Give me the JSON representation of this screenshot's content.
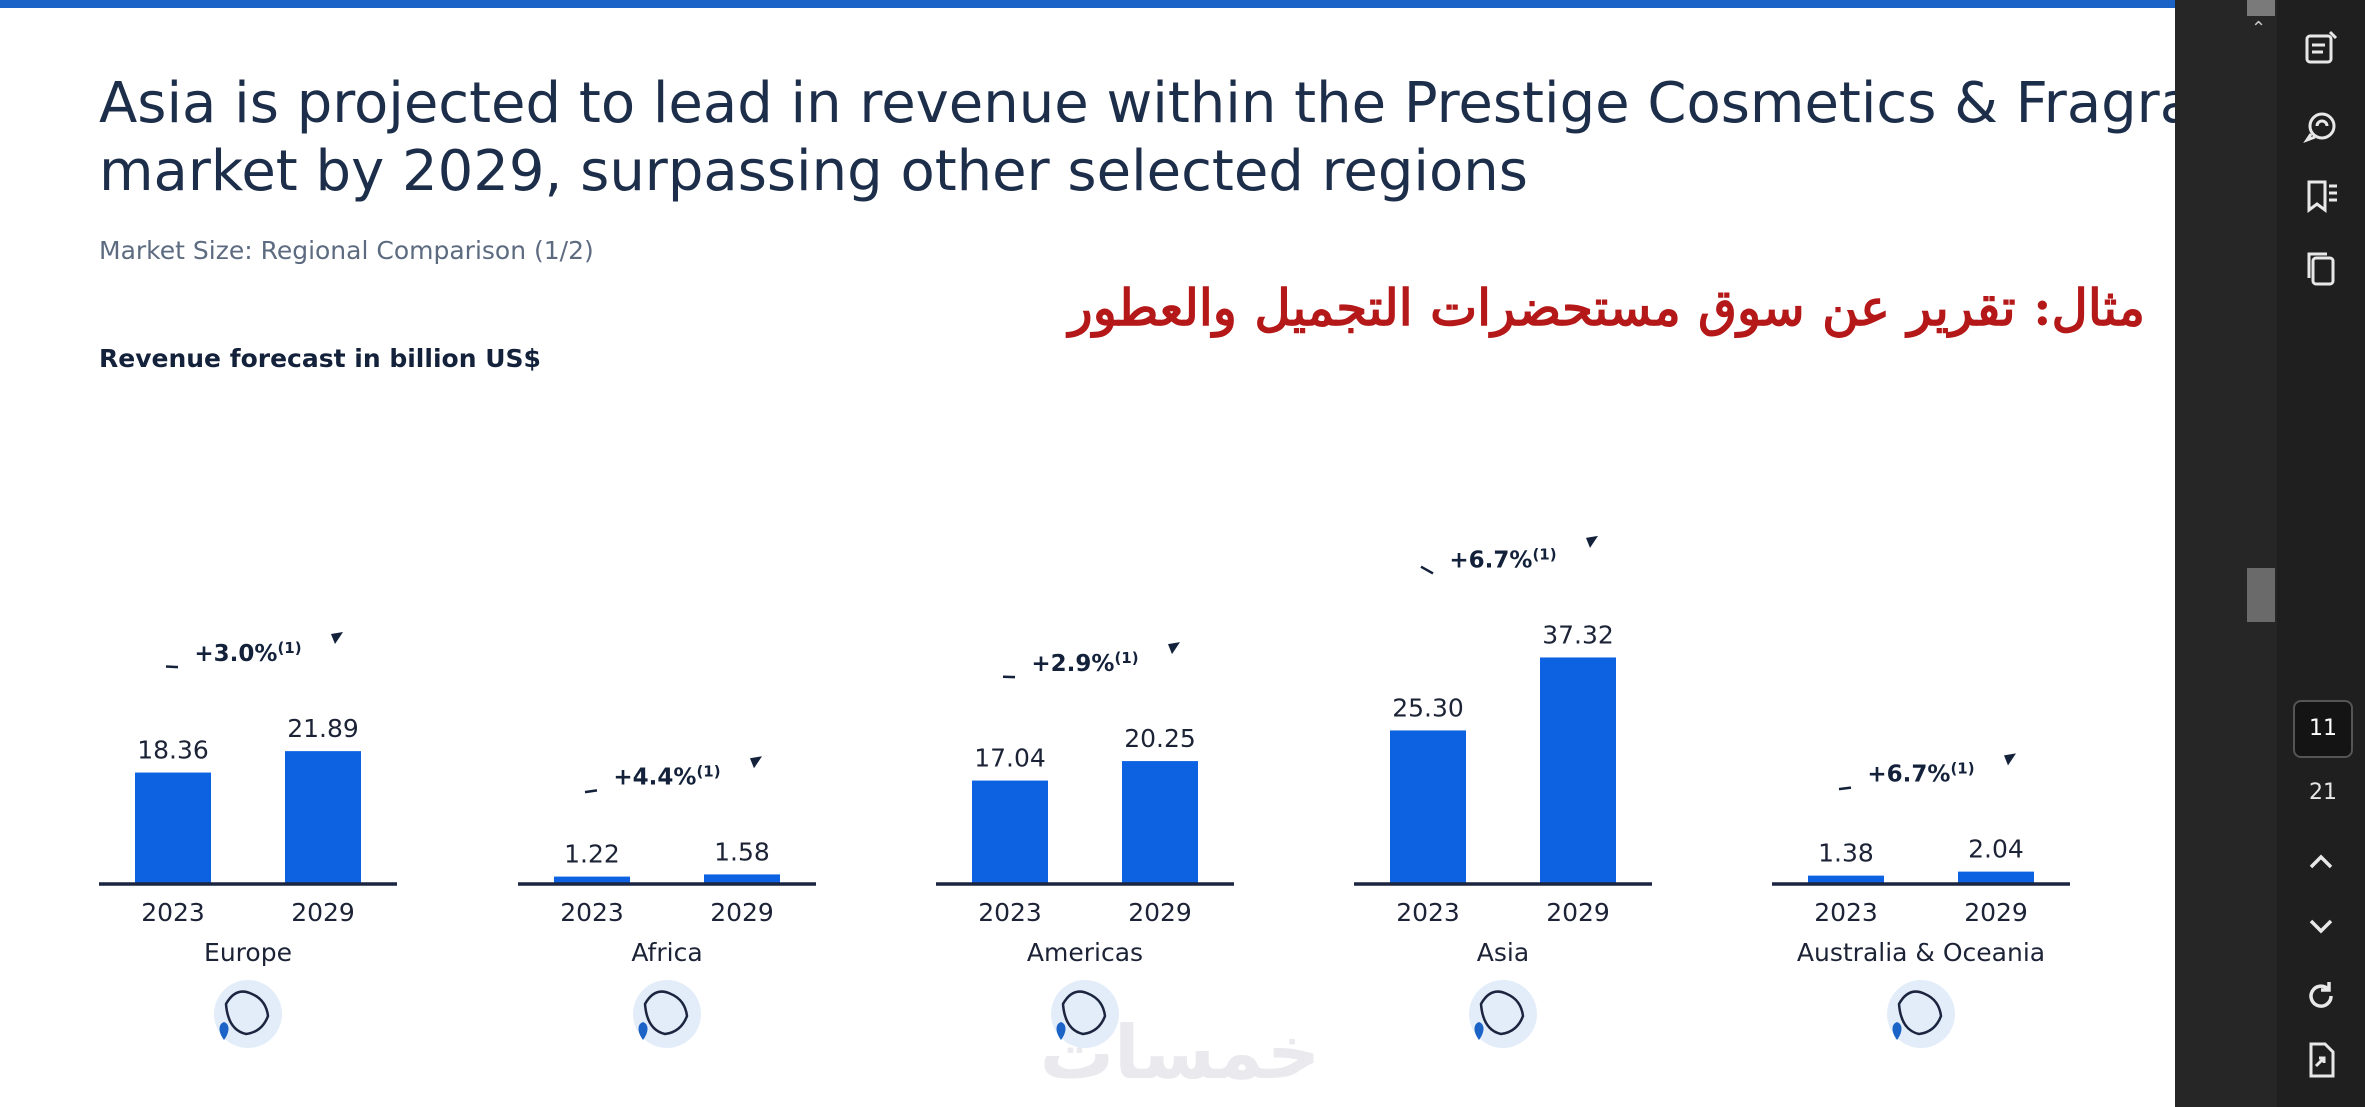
{
  "slide": {
    "title_line1": "Asia is projected to lead in revenue within the Prestige Cosmetics & Fragrances",
    "title_line2": "market by 2029, surpassing other selected regions",
    "subtitle": "Market Size: Regional Comparison (1/2)",
    "arabic_caption": "مثال: تقرير عن سوق مستحضرات التجميل والعطور",
    "y_label": "Revenue forecast in billion US$",
    "watermark": "خمسات"
  },
  "chart_data": {
    "type": "bar",
    "title": "Revenue forecast in billion US$",
    "categories": [
      "2023",
      "2029"
    ],
    "groups": [
      {
        "region": "Europe",
        "values": [
          18.36,
          21.89
        ],
        "labels": [
          "18.36",
          "21.89"
        ],
        "cagr": "+3.0%",
        "note": "(1)"
      },
      {
        "region": "Africa",
        "values": [
          1.22,
          1.58
        ],
        "labels": [
          "1.22",
          "1.58"
        ],
        "cagr": "+4.4%",
        "note": "(1)"
      },
      {
        "region": "Americas",
        "values": [
          17.04,
          20.25
        ],
        "labels": [
          "17.04",
          "20.25"
        ],
        "cagr": "+2.9%",
        "note": "(1)"
      },
      {
        "region": "Asia",
        "values": [
          25.3,
          37.32
        ],
        "labels": [
          "25.30",
          "37.32"
        ],
        "cagr": "+6.7%",
        "note": "(1)"
      },
      {
        "region": "Australia & Oceania",
        "values": [
          1.38,
          2.04
        ],
        "labels": [
          "1.38",
          "2.04"
        ],
        "cagr": "+6.7%",
        "note": "(1)"
      }
    ],
    "ylim": [
      0,
      37.32
    ],
    "bar_color": "#0d62e2"
  },
  "viewer": {
    "current_page": "11",
    "total_pages": "21",
    "icons": [
      "notes-icon",
      "comment-icon",
      "bookmarks-icon",
      "pages-icon",
      "page-up-icon",
      "page-down-icon",
      "refresh-icon",
      "export-icon"
    ]
  }
}
